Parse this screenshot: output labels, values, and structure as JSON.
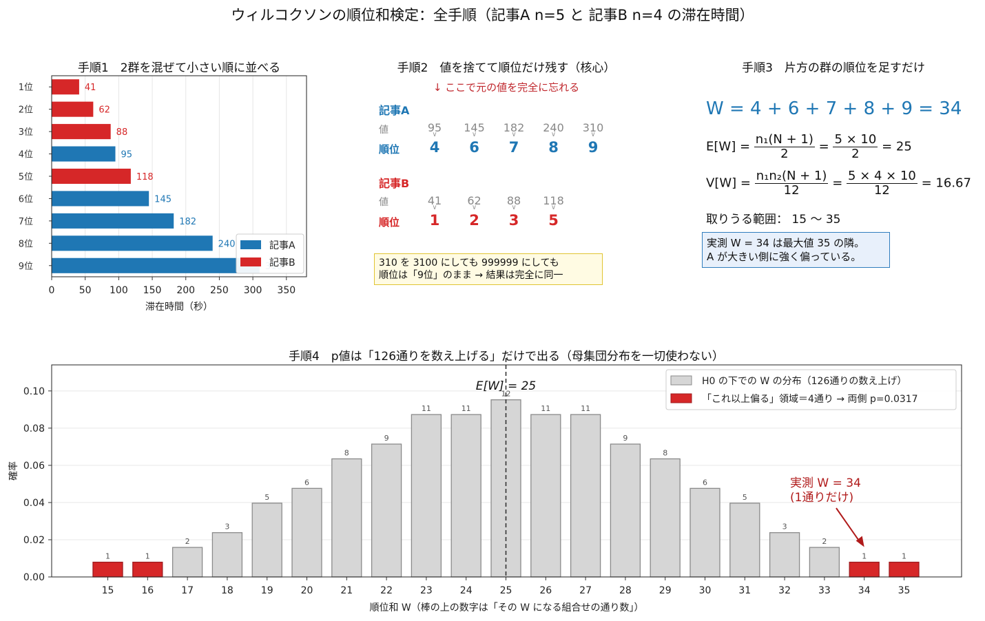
{
  "title": "ウィルコクソンの順位和検定：全手順（記事A n=5 と 記事B n=4 の滞在時間）",
  "panel1": {
    "title": "手順1　2群を混ぜて小さい順に並べる",
    "xlabel": "滞在時間（秒）",
    "legend": {
      "a": "記事A",
      "b": "記事B"
    }
  },
  "panel2": {
    "title": "手順2　値を捨てて順位だけ残す（核心）",
    "note": "↓ ここで元の値を完全に忘れる",
    "group_a": {
      "label": "記事A",
      "value_label": "値",
      "rank_label": "順位",
      "values": [
        "95",
        "145",
        "182",
        "240",
        "310"
      ],
      "ranks": [
        "4",
        "6",
        "7",
        "8",
        "9"
      ]
    },
    "group_b": {
      "label": "記事B",
      "value_label": "値",
      "rank_label": "順位",
      "values": [
        "41",
        "62",
        "88",
        "118"
      ],
      "ranks": [
        "1",
        "2",
        "3",
        "5"
      ]
    },
    "box_line1": "310 を 3100 にしても 999999 にしても",
    "box_line2": "順位は「9位」のまま → 結果は完全に同一"
  },
  "panel3": {
    "title": "手順3　片方の群の順位を足すだけ",
    "w_formula": "W = 4 + 6 + 7 + 8 + 9 = 34",
    "e_formula": {
      "lhs": "E[W] =",
      "num1": "n₁(N + 1)",
      "den1": "2",
      "num2": "5 × 10",
      "den2": "2",
      "result": "= 25"
    },
    "v_formula": {
      "lhs": "V[W] =",
      "num1": "n₁n₂(N + 1)",
      "den1": "12",
      "num2": "5 × 4 × 10",
      "den2": "12",
      "result": "= 16.67"
    },
    "range": "取りうる範囲： 15 〜 35",
    "box_line1": "実測 W = 34 は最大値 35 の隣。",
    "box_line2": "A が大きい側に強く偏っている。"
  },
  "panel4": {
    "title": "手順4　p値は「126通りを数え上げる」だけで出る（母集団分布を一切使わない）",
    "xlabel": "順位和 W（棒の上の数字は「その W になる組合せの通り数」）",
    "ylabel": "確率",
    "expected_label": "E[W] = 25",
    "legend": {
      "null": "H0 の下での W の分布（126通りの数え上げ）",
      "tail": "「これ以上偏る」領域＝4通り → 両側 p=0.0317"
    },
    "annotation_line1": "実測 W = 34",
    "annotation_line2": "(1通りだけ)"
  },
  "chart_data": [
    {
      "type": "bar",
      "orientation": "horizontal",
      "title": "手順1　2群を混ぜて小さい順に並べる",
      "xlabel": "滞在時間（秒）",
      "ylabel": "",
      "categories": [
        "1位",
        "2位",
        "3位",
        "4位",
        "5位",
        "6位",
        "7位",
        "8位",
        "9位"
      ],
      "values": [
        41,
        62,
        88,
        95,
        118,
        145,
        182,
        240,
        310
      ],
      "groups": [
        "記事B",
        "記事B",
        "記事B",
        "記事A",
        "記事B",
        "記事A",
        "記事A",
        "記事A",
        "記事A"
      ],
      "xlim": [
        0,
        380
      ],
      "xticks": [
        0,
        50,
        100,
        150,
        200,
        250,
        300,
        350
      ],
      "colors": {
        "記事A": "#1f77b4",
        "記事B": "#d62728"
      },
      "grid": "vertical",
      "legend": "lower-right"
    },
    {
      "type": "bar",
      "title": "手順4　p値は「126通りを数え上げる」だけで出る（母集団分布を一切使わない）",
      "xlabel": "順位和 W（棒の上の数字は「その W になる組合せの通り数」）",
      "ylabel": "確率",
      "categories": [
        15,
        16,
        17,
        18,
        19,
        20,
        21,
        22,
        23,
        24,
        25,
        26,
        27,
        28,
        29,
        30,
        31,
        32,
        33,
        34,
        35
      ],
      "counts": [
        1,
        1,
        2,
        3,
        5,
        6,
        8,
        9,
        11,
        11,
        12,
        11,
        11,
        9,
        8,
        6,
        5,
        3,
        2,
        1,
        1
      ],
      "total": 126,
      "tail_categories": [
        15,
        16,
        34,
        35
      ],
      "expected": 25,
      "observed": 34,
      "ylim": [
        0,
        0.114
      ],
      "yticks": [
        0.0,
        0.02,
        0.04,
        0.06,
        0.08,
        0.1
      ],
      "colors": {
        "null": "#d6d6d6",
        "tail": "#d62728"
      },
      "grid": "horizontal",
      "legend": "top-right"
    }
  ]
}
